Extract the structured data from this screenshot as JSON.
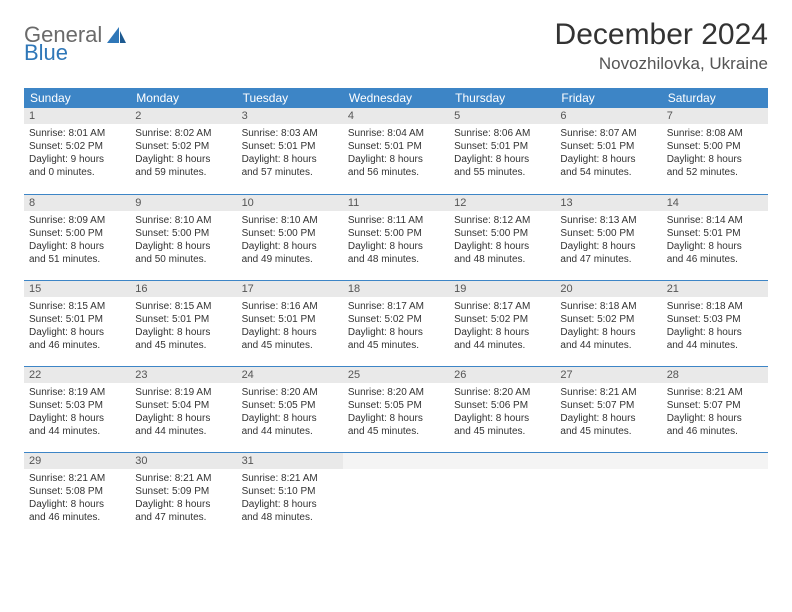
{
  "brand": {
    "part1": "General",
    "part2": "Blue"
  },
  "title": "December 2024",
  "location": "Novozhilovka, Ukraine",
  "header_bg": "#3d85c6",
  "daynum_bg": "#e9e9e9",
  "weekdays": [
    "Sunday",
    "Monday",
    "Tuesday",
    "Wednesday",
    "Thursday",
    "Friday",
    "Saturday"
  ],
  "weeks": [
    [
      {
        "n": "1",
        "sr": "Sunrise: 8:01 AM",
        "ss": "Sunset: 5:02 PM",
        "d1": "Daylight: 9 hours",
        "d2": "and 0 minutes."
      },
      {
        "n": "2",
        "sr": "Sunrise: 8:02 AM",
        "ss": "Sunset: 5:02 PM",
        "d1": "Daylight: 8 hours",
        "d2": "and 59 minutes."
      },
      {
        "n": "3",
        "sr": "Sunrise: 8:03 AM",
        "ss": "Sunset: 5:01 PM",
        "d1": "Daylight: 8 hours",
        "d2": "and 57 minutes."
      },
      {
        "n": "4",
        "sr": "Sunrise: 8:04 AM",
        "ss": "Sunset: 5:01 PM",
        "d1": "Daylight: 8 hours",
        "d2": "and 56 minutes."
      },
      {
        "n": "5",
        "sr": "Sunrise: 8:06 AM",
        "ss": "Sunset: 5:01 PM",
        "d1": "Daylight: 8 hours",
        "d2": "and 55 minutes."
      },
      {
        "n": "6",
        "sr": "Sunrise: 8:07 AM",
        "ss": "Sunset: 5:01 PM",
        "d1": "Daylight: 8 hours",
        "d2": "and 54 minutes."
      },
      {
        "n": "7",
        "sr": "Sunrise: 8:08 AM",
        "ss": "Sunset: 5:00 PM",
        "d1": "Daylight: 8 hours",
        "d2": "and 52 minutes."
      }
    ],
    [
      {
        "n": "8",
        "sr": "Sunrise: 8:09 AM",
        "ss": "Sunset: 5:00 PM",
        "d1": "Daylight: 8 hours",
        "d2": "and 51 minutes."
      },
      {
        "n": "9",
        "sr": "Sunrise: 8:10 AM",
        "ss": "Sunset: 5:00 PM",
        "d1": "Daylight: 8 hours",
        "d2": "and 50 minutes."
      },
      {
        "n": "10",
        "sr": "Sunrise: 8:10 AM",
        "ss": "Sunset: 5:00 PM",
        "d1": "Daylight: 8 hours",
        "d2": "and 49 minutes."
      },
      {
        "n": "11",
        "sr": "Sunrise: 8:11 AM",
        "ss": "Sunset: 5:00 PM",
        "d1": "Daylight: 8 hours",
        "d2": "and 48 minutes."
      },
      {
        "n": "12",
        "sr": "Sunrise: 8:12 AM",
        "ss": "Sunset: 5:00 PM",
        "d1": "Daylight: 8 hours",
        "d2": "and 48 minutes."
      },
      {
        "n": "13",
        "sr": "Sunrise: 8:13 AM",
        "ss": "Sunset: 5:00 PM",
        "d1": "Daylight: 8 hours",
        "d2": "and 47 minutes."
      },
      {
        "n": "14",
        "sr": "Sunrise: 8:14 AM",
        "ss": "Sunset: 5:01 PM",
        "d1": "Daylight: 8 hours",
        "d2": "and 46 minutes."
      }
    ],
    [
      {
        "n": "15",
        "sr": "Sunrise: 8:15 AM",
        "ss": "Sunset: 5:01 PM",
        "d1": "Daylight: 8 hours",
        "d2": "and 46 minutes."
      },
      {
        "n": "16",
        "sr": "Sunrise: 8:15 AM",
        "ss": "Sunset: 5:01 PM",
        "d1": "Daylight: 8 hours",
        "d2": "and 45 minutes."
      },
      {
        "n": "17",
        "sr": "Sunrise: 8:16 AM",
        "ss": "Sunset: 5:01 PM",
        "d1": "Daylight: 8 hours",
        "d2": "and 45 minutes."
      },
      {
        "n": "18",
        "sr": "Sunrise: 8:17 AM",
        "ss": "Sunset: 5:02 PM",
        "d1": "Daylight: 8 hours",
        "d2": "and 45 minutes."
      },
      {
        "n": "19",
        "sr": "Sunrise: 8:17 AM",
        "ss": "Sunset: 5:02 PM",
        "d1": "Daylight: 8 hours",
        "d2": "and 44 minutes."
      },
      {
        "n": "20",
        "sr": "Sunrise: 8:18 AM",
        "ss": "Sunset: 5:02 PM",
        "d1": "Daylight: 8 hours",
        "d2": "and 44 minutes."
      },
      {
        "n": "21",
        "sr": "Sunrise: 8:18 AM",
        "ss": "Sunset: 5:03 PM",
        "d1": "Daylight: 8 hours",
        "d2": "and 44 minutes."
      }
    ],
    [
      {
        "n": "22",
        "sr": "Sunrise: 8:19 AM",
        "ss": "Sunset: 5:03 PM",
        "d1": "Daylight: 8 hours",
        "d2": "and 44 minutes."
      },
      {
        "n": "23",
        "sr": "Sunrise: 8:19 AM",
        "ss": "Sunset: 5:04 PM",
        "d1": "Daylight: 8 hours",
        "d2": "and 44 minutes."
      },
      {
        "n": "24",
        "sr": "Sunrise: 8:20 AM",
        "ss": "Sunset: 5:05 PM",
        "d1": "Daylight: 8 hours",
        "d2": "and 44 minutes."
      },
      {
        "n": "25",
        "sr": "Sunrise: 8:20 AM",
        "ss": "Sunset: 5:05 PM",
        "d1": "Daylight: 8 hours",
        "d2": "and 45 minutes."
      },
      {
        "n": "26",
        "sr": "Sunrise: 8:20 AM",
        "ss": "Sunset: 5:06 PM",
        "d1": "Daylight: 8 hours",
        "d2": "and 45 minutes."
      },
      {
        "n": "27",
        "sr": "Sunrise: 8:21 AM",
        "ss": "Sunset: 5:07 PM",
        "d1": "Daylight: 8 hours",
        "d2": "and 45 minutes."
      },
      {
        "n": "28",
        "sr": "Sunrise: 8:21 AM",
        "ss": "Sunset: 5:07 PM",
        "d1": "Daylight: 8 hours",
        "d2": "and 46 minutes."
      }
    ],
    [
      {
        "n": "29",
        "sr": "Sunrise: 8:21 AM",
        "ss": "Sunset: 5:08 PM",
        "d1": "Daylight: 8 hours",
        "d2": "and 46 minutes."
      },
      {
        "n": "30",
        "sr": "Sunrise: 8:21 AM",
        "ss": "Sunset: 5:09 PM",
        "d1": "Daylight: 8 hours",
        "d2": "and 47 minutes."
      },
      {
        "n": "31",
        "sr": "Sunrise: 8:21 AM",
        "ss": "Sunset: 5:10 PM",
        "d1": "Daylight: 8 hours",
        "d2": "and 48 minutes."
      },
      {
        "n": "",
        "empty": true
      },
      {
        "n": "",
        "empty": true
      },
      {
        "n": "",
        "empty": true
      },
      {
        "n": "",
        "empty": true
      }
    ]
  ]
}
